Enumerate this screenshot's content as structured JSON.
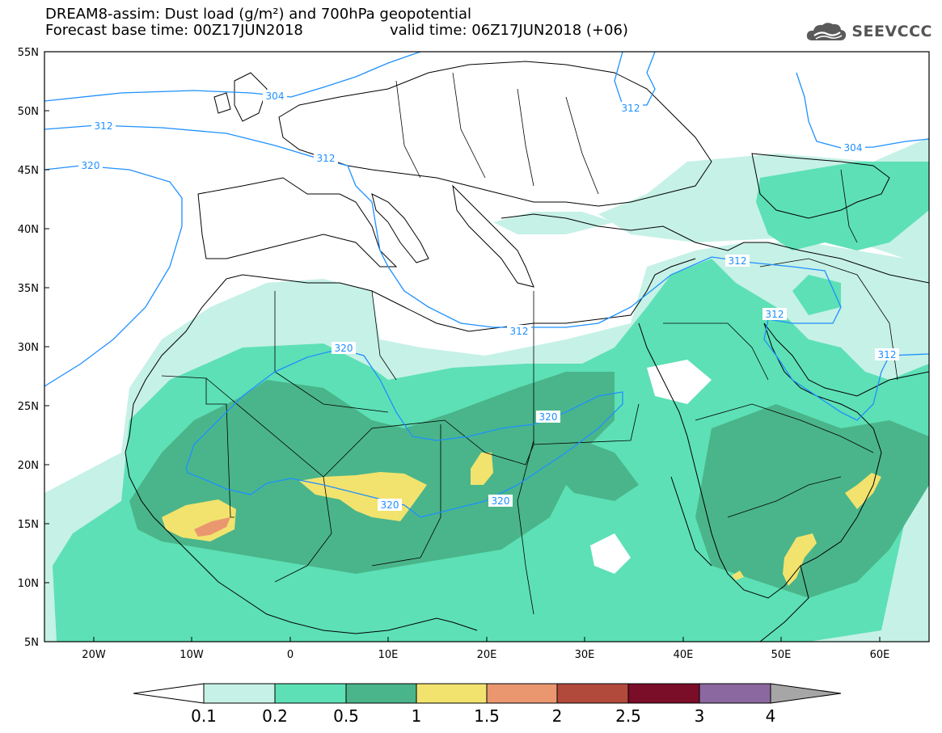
{
  "header": {
    "line1": "DREAM8-assim: Dust load (g/m²) and 700hPa geopotential",
    "line2_left": "Forecast base time: 00Z17JUN2018",
    "line2_right": "valid time: 06Z17JUN2018 (+06)"
  },
  "logo": {
    "text": "SEEVCCC",
    "icon": "cloud-icon"
  },
  "axes": {
    "lat_labels": [
      "55N",
      "50N",
      "45N",
      "40N",
      "35N",
      "30N",
      "25N",
      "20N",
      "15N",
      "10N",
      "5N"
    ],
    "lon_labels": [
      "20W",
      "10W",
      "0",
      "10E",
      "20E",
      "30E",
      "40E",
      "50E",
      "60E"
    ]
  },
  "contours": {
    "labels": [
      "304",
      "312",
      "320",
      "312",
      "312",
      "304",
      "312",
      "320",
      "320",
      "320",
      "320",
      "312",
      "312",
      "312",
      "312"
    ]
  },
  "legend": {
    "labels": [
      "0.1",
      "0.2",
      "0.5",
      "1",
      "1.5",
      "2",
      "2.5",
      "3",
      "4"
    ],
    "colors": [
      "#c6f1e6",
      "#5de0b5",
      "#4ab58a",
      "#f2e36e",
      "#ea9770",
      "#b24a3c",
      "#7a0d28",
      "#8b68a0"
    ],
    "end_colors": {
      "low": "#ffffff",
      "high": "#a6a6a6"
    }
  },
  "colors": {
    "contour": "#1e90ff",
    "dust_01": "#c6f1e6",
    "dust_02": "#5de0b5",
    "dust_05": "#4ab58a",
    "dust_1": "#f2e36e",
    "dust_15": "#ea9770"
  }
}
